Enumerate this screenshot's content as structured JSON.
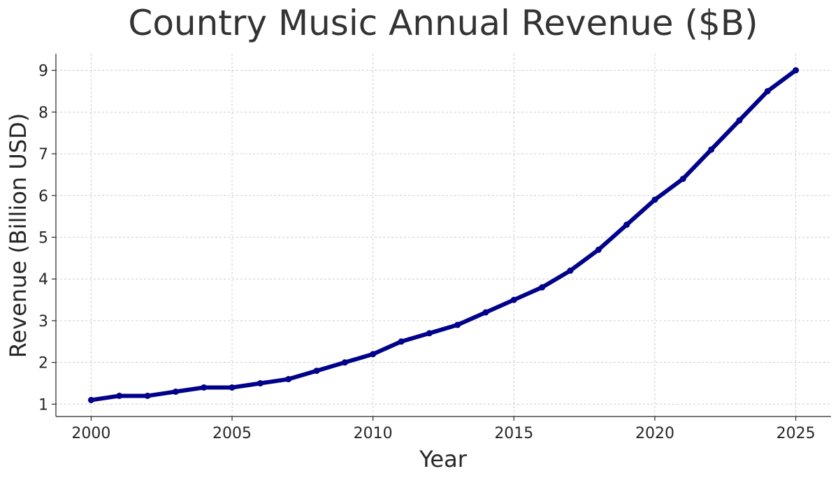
{
  "chart_data": {
    "type": "line",
    "title": "Country Music Annual Revenue ($B)",
    "xlabel": "Year",
    "ylabel": "Revenue (Billion USD)",
    "x": [
      2000,
      2001,
      2002,
      2003,
      2004,
      2005,
      2006,
      2007,
      2008,
      2009,
      2010,
      2011,
      2012,
      2013,
      2014,
      2015,
      2016,
      2017,
      2018,
      2019,
      2020,
      2021,
      2022,
      2023,
      2024,
      2025
    ],
    "series": [
      {
        "values": [
          1.1,
          1.2,
          1.2,
          1.3,
          1.4,
          1.4,
          1.5,
          1.6,
          1.8,
          2.0,
          2.2,
          2.5,
          2.7,
          2.9,
          3.2,
          3.5,
          3.8,
          4.2,
          4.7,
          5.3,
          5.9,
          6.4,
          7.1,
          7.8,
          8.5,
          9.0
        ],
        "color": "#00008b"
      }
    ],
    "xticks": [
      "2000",
      "2005",
      "2010",
      "2015",
      "2020",
      "2025"
    ],
    "yticks": [
      "1",
      "2",
      "3",
      "4",
      "5",
      "6",
      "7",
      "8",
      "9"
    ],
    "xlim": [
      1998.75,
      2026.25
    ],
    "ylim": [
      0.705,
      9.395
    ],
    "grid": true,
    "grid_style": "dashed",
    "legend": "none"
  }
}
